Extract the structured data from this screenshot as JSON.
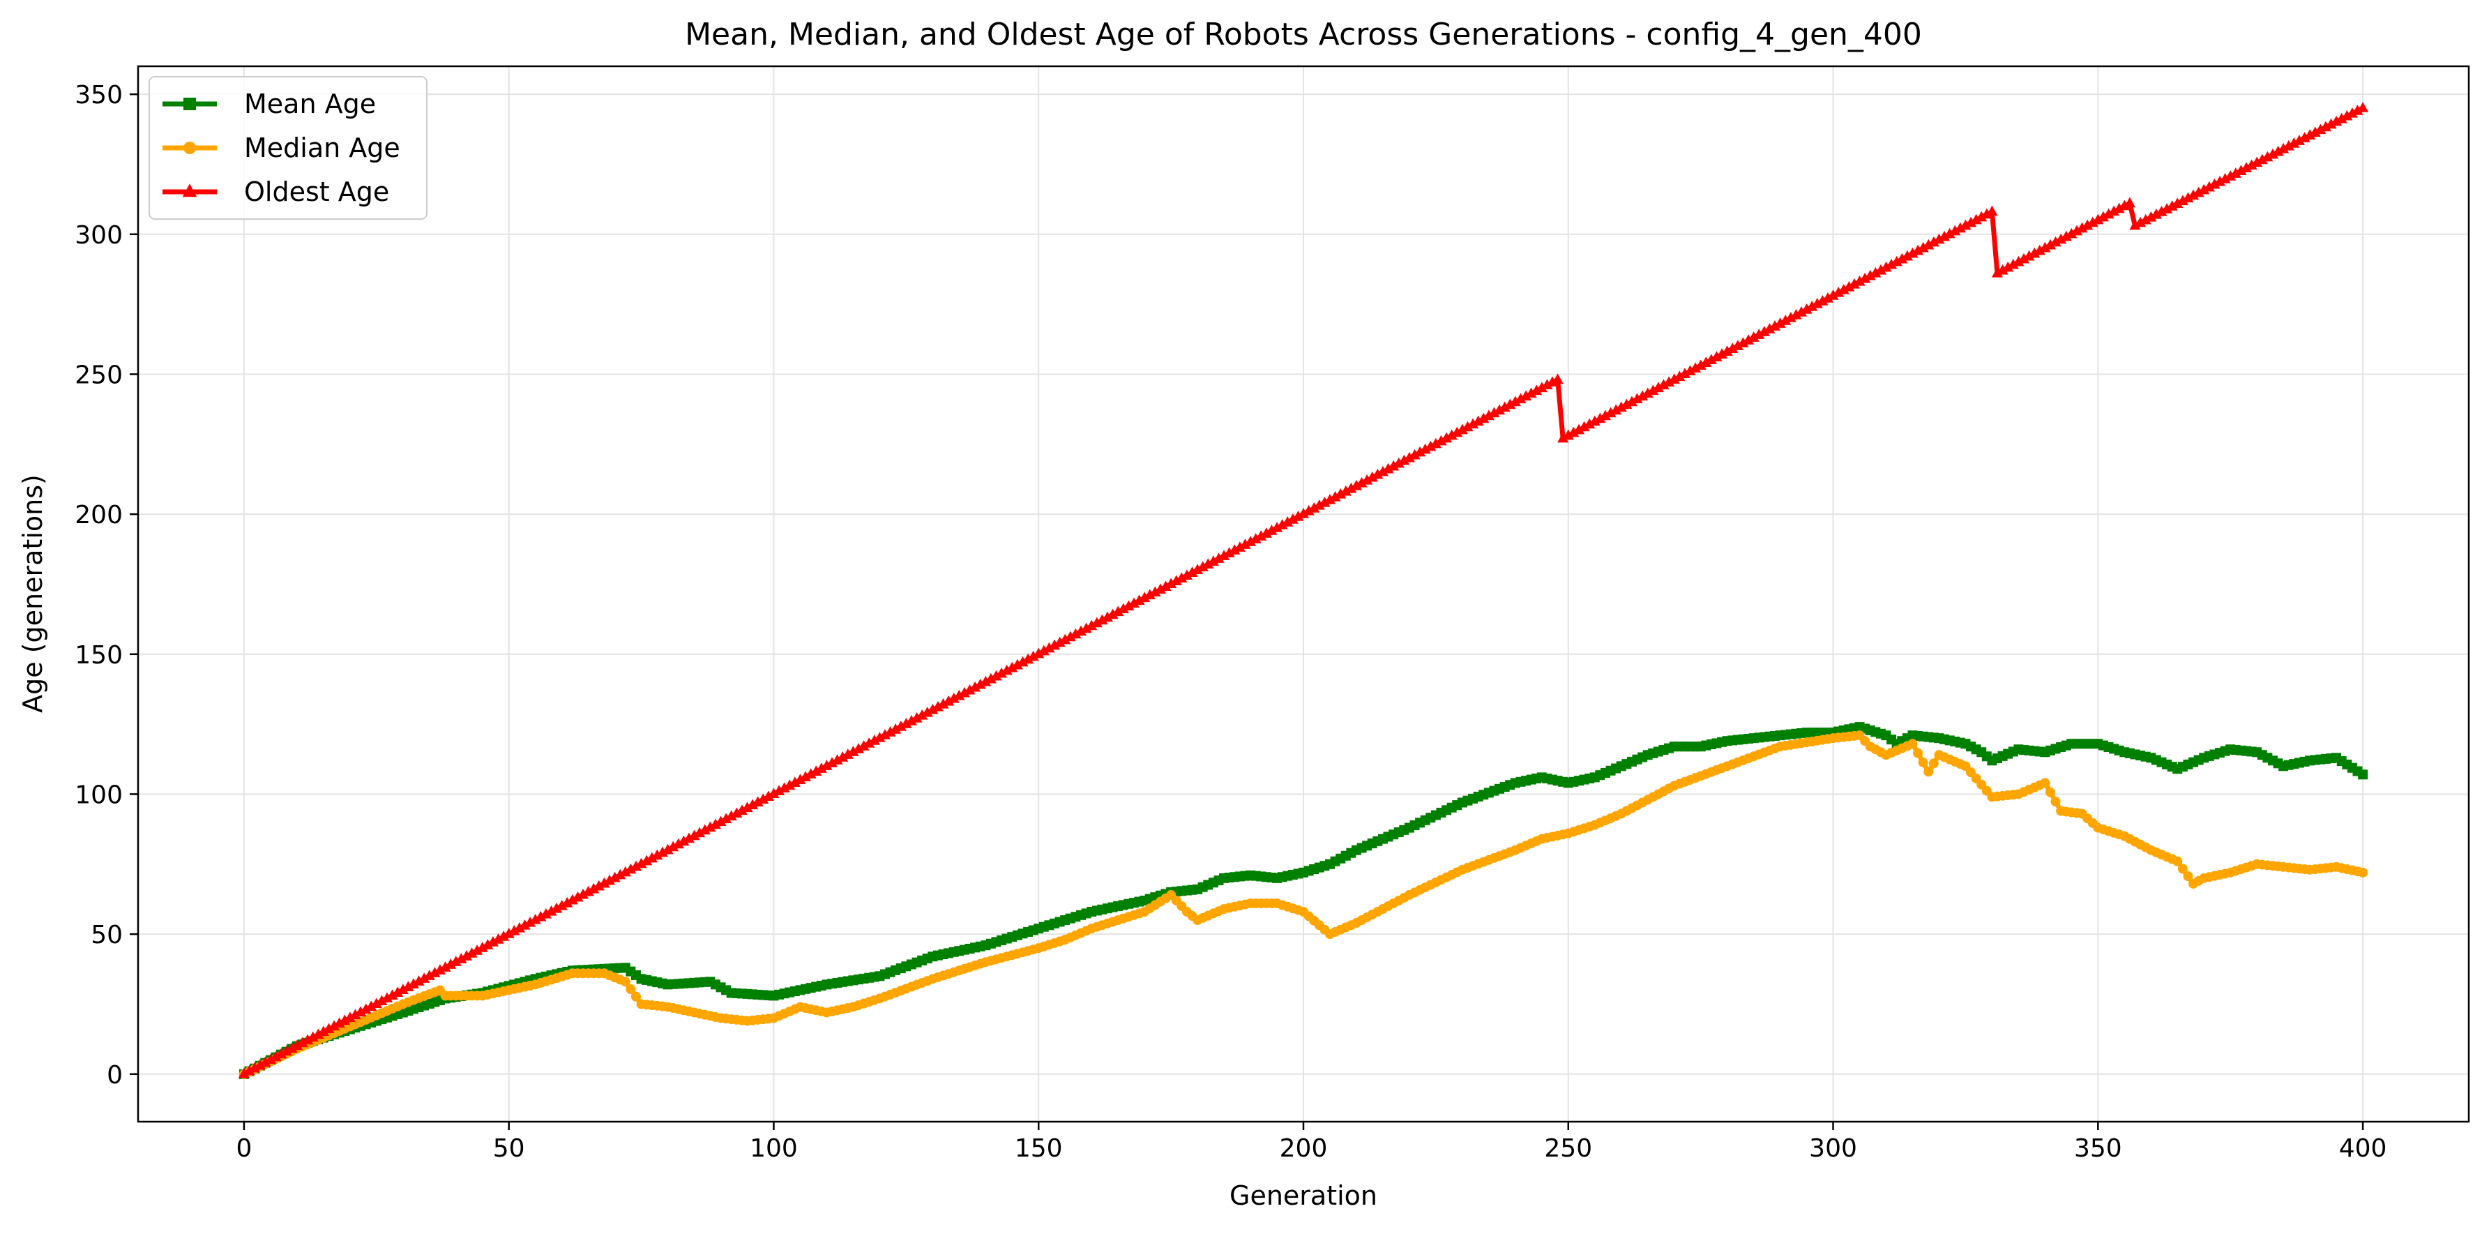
{
  "chart_data": {
    "type": "line",
    "title": "Mean, Median, and Oldest Age of Robots Across Generations - config_4_gen_400",
    "xlabel": "Generation",
    "ylabel": "Age (generations)",
    "xlim": [
      -20,
      420
    ],
    "ylim": [
      -17,
      360
    ],
    "xticks": [
      0,
      50,
      100,
      150,
      200,
      250,
      300,
      350,
      400
    ],
    "yticks": [
      0,
      50,
      100,
      150,
      200,
      250,
      300,
      350
    ],
    "grid": true,
    "legend_position": "top-left",
    "series": [
      {
        "name": "Mean Age",
        "color": "#008000",
        "marker": "square",
        "points": [
          [
            0,
            0
          ],
          [
            5,
            5
          ],
          [
            10,
            10
          ],
          [
            20,
            16
          ],
          [
            30,
            22
          ],
          [
            38,
            27
          ],
          [
            45,
            29
          ],
          [
            55,
            34
          ],
          [
            62,
            37
          ],
          [
            72,
            38
          ],
          [
            75,
            34
          ],
          [
            80,
            32
          ],
          [
            88,
            33
          ],
          [
            92,
            29
          ],
          [
            100,
            28
          ],
          [
            105,
            30
          ],
          [
            110,
            32
          ],
          [
            120,
            35
          ],
          [
            130,
            42
          ],
          [
            140,
            46
          ],
          [
            150,
            52
          ],
          [
            160,
            58
          ],
          [
            170,
            62
          ],
          [
            175,
            65
          ],
          [
            180,
            66
          ],
          [
            185,
            70
          ],
          [
            190,
            71
          ],
          [
            195,
            70
          ],
          [
            200,
            72
          ],
          [
            205,
            75
          ],
          [
            210,
            80
          ],
          [
            220,
            88
          ],
          [
            230,
            97
          ],
          [
            240,
            104
          ],
          [
            245,
            106
          ],
          [
            250,
            104
          ],
          [
            255,
            106
          ],
          [
            260,
            110
          ],
          [
            265,
            114
          ],
          [
            270,
            117
          ],
          [
            275,
            117
          ],
          [
            280,
            119
          ],
          [
            285,
            120
          ],
          [
            290,
            121
          ],
          [
            295,
            122
          ],
          [
            300,
            122
          ],
          [
            305,
            124
          ],
          [
            310,
            121
          ],
          [
            312,
            118
          ],
          [
            315,
            121
          ],
          [
            320,
            120
          ],
          [
            325,
            118
          ],
          [
            328,
            115
          ],
          [
            330,
            112
          ],
          [
            335,
            116
          ],
          [
            340,
            115
          ],
          [
            345,
            118
          ],
          [
            350,
            118
          ],
          [
            355,
            115
          ],
          [
            360,
            113
          ],
          [
            365,
            109
          ],
          [
            370,
            113
          ],
          [
            375,
            116
          ],
          [
            380,
            115
          ],
          [
            385,
            110
          ],
          [
            390,
            112
          ],
          [
            395,
            113
          ],
          [
            400,
            107
          ]
        ]
      },
      {
        "name": "Median Age",
        "color": "#FFA500",
        "marker": "circle",
        "points": [
          [
            0,
            0
          ],
          [
            10,
            9
          ],
          [
            20,
            17
          ],
          [
            30,
            25
          ],
          [
            37,
            30
          ],
          [
            38,
            28
          ],
          [
            45,
            28
          ],
          [
            55,
            32
          ],
          [
            62,
            36
          ],
          [
            68,
            36
          ],
          [
            72,
            33
          ],
          [
            75,
            25
          ],
          [
            80,
            24
          ],
          [
            85,
            22
          ],
          [
            90,
            20
          ],
          [
            95,
            19
          ],
          [
            100,
            20
          ],
          [
            105,
            24
          ],
          [
            110,
            22
          ],
          [
            115,
            24
          ],
          [
            120,
            27
          ],
          [
            130,
            34
          ],
          [
            140,
            40
          ],
          [
            150,
            45
          ],
          [
            155,
            48
          ],
          [
            160,
            52
          ],
          [
            170,
            58
          ],
          [
            175,
            64
          ],
          [
            178,
            58
          ],
          [
            180,
            55
          ],
          [
            185,
            59
          ],
          [
            190,
            61
          ],
          [
            195,
            61
          ],
          [
            200,
            58
          ],
          [
            205,
            50
          ],
          [
            210,
            54
          ],
          [
            220,
            64
          ],
          [
            230,
            73
          ],
          [
            240,
            80
          ],
          [
            245,
            84
          ],
          [
            250,
            86
          ],
          [
            255,
            89
          ],
          [
            260,
            93
          ],
          [
            270,
            103
          ],
          [
            280,
            110
          ],
          [
            290,
            117
          ],
          [
            300,
            120
          ],
          [
            305,
            121
          ],
          [
            307,
            117
          ],
          [
            310,
            114
          ],
          [
            315,
            118
          ],
          [
            318,
            108
          ],
          [
            320,
            114
          ],
          [
            325,
            110
          ],
          [
            330,
            99
          ],
          [
            335,
            100
          ],
          [
            340,
            104
          ],
          [
            343,
            94
          ],
          [
            347,
            93
          ],
          [
            350,
            88
          ],
          [
            355,
            85
          ],
          [
            360,
            80
          ],
          [
            365,
            76
          ],
          [
            368,
            68
          ],
          [
            370,
            70
          ],
          [
            375,
            72
          ],
          [
            380,
            75
          ],
          [
            385,
            74
          ],
          [
            390,
            73
          ],
          [
            395,
            74
          ],
          [
            400,
            72
          ]
        ]
      },
      {
        "name": "Oldest Age",
        "color": "#FF0000",
        "marker": "triangle",
        "points": [
          [
            0,
            0
          ],
          [
            248,
            248
          ],
          [
            249,
            227
          ],
          [
            330,
            308
          ],
          [
            331,
            286
          ],
          [
            356,
            311
          ],
          [
            357,
            303
          ],
          [
            400,
            345
          ]
        ]
      }
    ]
  }
}
